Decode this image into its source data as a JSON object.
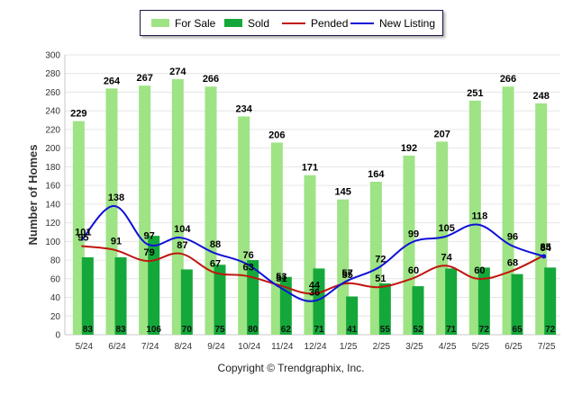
{
  "chart_data": {
    "type": "bar",
    "ylabel": "Number of Homes",
    "xlabel": "",
    "ylim": [
      0,
      300
    ],
    "yticks": [
      0,
      20,
      40,
      60,
      80,
      100,
      120,
      140,
      160,
      180,
      200,
      220,
      240,
      260,
      280,
      300
    ],
    "categories": [
      "5/24",
      "6/24",
      "7/24",
      "8/24",
      "9/24",
      "10/24",
      "11/24",
      "12/24",
      "1/25",
      "2/25",
      "3/25",
      "4/25",
      "5/25",
      "6/25",
      "7/25"
    ],
    "series": [
      {
        "name": "For Sale",
        "kind": "bar",
        "color": "#9ee384",
        "values": [
          229,
          264,
          267,
          274,
          266,
          234,
          206,
          171,
          145,
          164,
          192,
          207,
          251,
          266,
          248
        ]
      },
      {
        "name": "Sold",
        "kind": "bar",
        "color": "#14a83a",
        "values": [
          83,
          83,
          106,
          70,
          75,
          80,
          62,
          71,
          41,
          55,
          52,
          71,
          72,
          65,
          72
        ]
      },
      {
        "name": "Pended",
        "kind": "line",
        "color": "#c0150f",
        "values": [
          95,
          91,
          79,
          87,
          67,
          63,
          53,
          44,
          55,
          51,
          60,
          74,
          60,
          68,
          85
        ]
      },
      {
        "name": "New Listing",
        "kind": "line",
        "color": "#1010d8",
        "values": [
          101,
          138,
          97,
          104,
          88,
          76,
          51,
          36,
          57,
          72,
          99,
          105,
          118,
          96,
          84
        ]
      }
    ],
    "legend_position": "top-center",
    "grid": true
  },
  "footer": {
    "copyright": "Copyright © Trendgraphix, Inc."
  }
}
